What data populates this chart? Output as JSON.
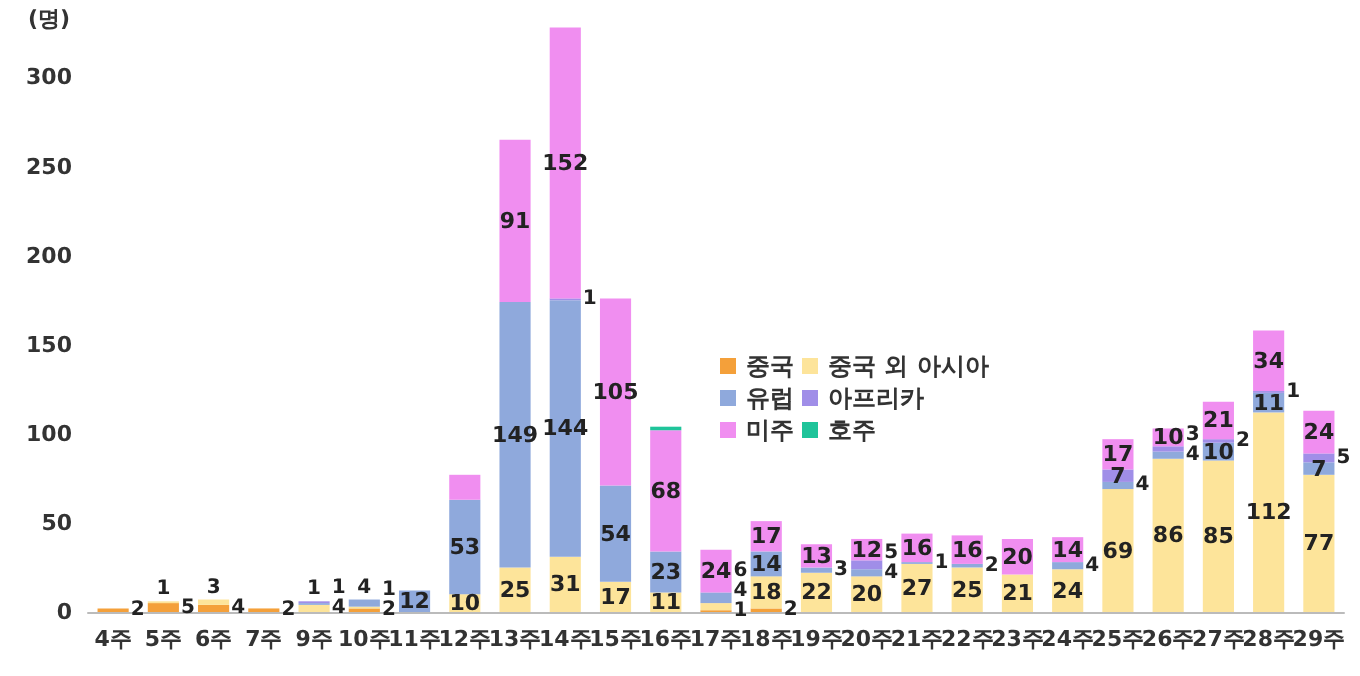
{
  "chart_data": {
    "type": "bar",
    "stacked": true,
    "ylabel": "(명)",
    "categories": [
      "4주",
      "5주",
      "6주",
      "7주",
      "9주",
      "10주",
      "11주",
      "12주",
      "13주",
      "14주",
      "15주",
      "16주",
      "17주",
      "18주",
      "19주",
      "20주",
      "21주",
      "22주",
      "23주",
      "24주",
      "25주",
      "26주",
      "27주",
      "28주",
      "29주"
    ],
    "ylim": [
      0,
      330
    ],
    "yticks": [
      0,
      50,
      100,
      150,
      200,
      250,
      300
    ],
    "grid": false,
    "legend": "center",
    "series": [
      {
        "name": "중국",
        "color": "#f4a03a",
        "values": [
          2,
          5,
          4,
          2,
          null,
          2,
          null,
          null,
          null,
          null,
          null,
          null,
          1,
          2,
          null,
          null,
          null,
          null,
          null,
          null,
          null,
          null,
          null,
          null,
          null
        ],
        "value_labels": [
          "2",
          "5",
          "4",
          "2",
          null,
          "2",
          null,
          null,
          null,
          null,
          null,
          null,
          "1",
          "2",
          null,
          null,
          null,
          null,
          null,
          null,
          null,
          null,
          null,
          null,
          null
        ]
      },
      {
        "name": "중국 외 아시아",
        "color": "#fde49a",
        "values": [
          null,
          1,
          3,
          null,
          4,
          1,
          null,
          10,
          25,
          31,
          17,
          11,
          4,
          18,
          22,
          20,
          27,
          25,
          21,
          24,
          69,
          86,
          85,
          112,
          77
        ],
        "value_labels": [
          null,
          "1",
          "3",
          null,
          "4",
          "1",
          null,
          "10",
          "25",
          "31",
          "17",
          "11",
          "4",
          "18",
          "22",
          "20",
          "27",
          "25",
          "21",
          "24",
          "69",
          "86",
          "85",
          "112",
          "77"
        ]
      },
      {
        "name": "유럽",
        "color": "#8fa9dc",
        "values": [
          null,
          null,
          null,
          null,
          1,
          4,
          12,
          53,
          149,
          144,
          54,
          23,
          6,
          14,
          3,
          4,
          1,
          2,
          null,
          4,
          4,
          4,
          10,
          11,
          7
        ],
        "value_labels": [
          null,
          null,
          null,
          null,
          "1",
          "4",
          "12",
          "53",
          "149",
          "144",
          "54",
          "23",
          "6",
          "14",
          "3",
          "4",
          "1",
          "2",
          null,
          "4",
          "4",
          "4",
          "10",
          "11",
          "7"
        ]
      },
      {
        "name": "아프리카",
        "color": "#a08ee8",
        "values": [
          null,
          null,
          null,
          null,
          1,
          null,
          null,
          null,
          null,
          1,
          null,
          null,
          null,
          null,
          null,
          5,
          null,
          null,
          null,
          null,
          7,
          3,
          2,
          1,
          5
        ],
        "value_labels": [
          null,
          null,
          null,
          null,
          "1",
          null,
          null,
          null,
          null,
          "1",
          null,
          null,
          null,
          null,
          null,
          "5",
          null,
          null,
          null,
          null,
          "7",
          "3",
          "2",
          "1",
          "5"
        ]
      },
      {
        "name": "미주",
        "color": "#f08ef0",
        "values": [
          null,
          null,
          null,
          null,
          null,
          null,
          null,
          14,
          91,
          152,
          105,
          68,
          24,
          17,
          13,
          12,
          16,
          16,
          20,
          14,
          17,
          10,
          21,
          34,
          24
        ],
        "value_labels": [
          null,
          null,
          null,
          null,
          null,
          null,
          null,
          null,
          "91",
          "152",
          "105",
          "68",
          "24",
          "17",
          "13",
          "12",
          "16",
          "16",
          "20",
          "14",
          "17",
          "10",
          "21",
          "34",
          "24"
        ]
      },
      {
        "name": "호주",
        "color": "#1fc49a",
        "values": [
          null,
          null,
          null,
          null,
          null,
          null,
          null,
          null,
          null,
          null,
          null,
          2,
          null,
          null,
          null,
          null,
          null,
          null,
          null,
          null,
          null,
          null,
          null,
          null,
          null
        ],
        "value_labels": [
          null,
          null,
          null,
          null,
          null,
          null,
          null,
          null,
          null,
          null,
          null,
          null,
          null,
          null,
          null,
          null,
          null,
          null,
          null,
          null,
          null,
          null,
          null,
          null,
          null
        ]
      }
    ]
  }
}
